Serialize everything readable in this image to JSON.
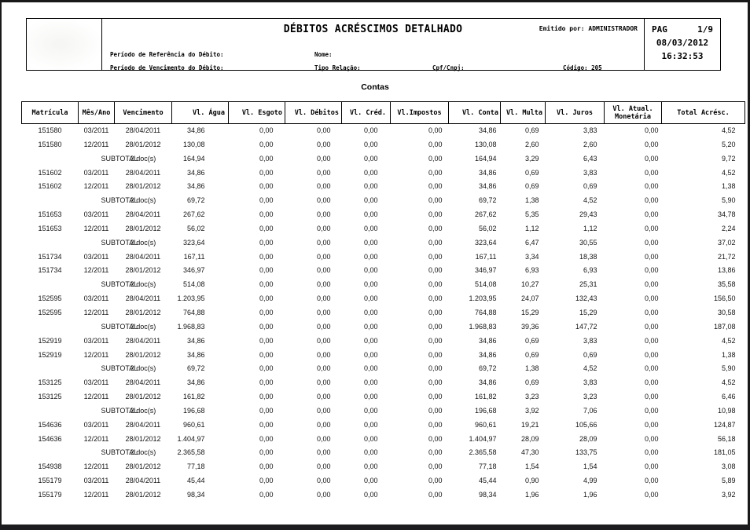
{
  "header": {
    "title": "DÉBITOS ACRÉSCIMOS DETALHADO",
    "emitted_by": "Emitido por: ADMINISTRADOR",
    "pag_label": "PAG",
    "page_number": "1/9",
    "date": "08/03/2012",
    "time": "16:32:53",
    "fields": {
      "periodo_referencia": "Período de Referência do Débito:",
      "periodo_vencimento": "Período de Vencimento do Débito:",
      "nome": "Nome:",
      "tipo_relacao": "Tipo Relação:",
      "cpf_cnpj": "Cpf/Cnpj:",
      "codigo": "Código: 205"
    }
  },
  "section_title": "Contas",
  "table": {
    "columns": [
      "Matrícula",
      "Mês/Ano",
      "Vencimento",
      "Vl. Água",
      "Vl. Esgoto",
      "Vl. Débitos",
      "Vl. Créd.",
      "Vl.Impostos",
      "Vl. Conta",
      "Vl. Multa",
      "Vl. Juros",
      "Vl. Atual.\nMonetária",
      "Total Acrésc."
    ],
    "rows": [
      [
        "151580",
        "03/2011",
        "28/04/2011",
        "34,86",
        "0,00",
        "0,00",
        "0,00",
        "0,00",
        "34,86",
        "0,69",
        "3,83",
        "0,00",
        "4,52"
      ],
      [
        "151580",
        "12/2011",
        "28/01/2012",
        "130,08",
        "0,00",
        "0,00",
        "0,00",
        "0,00",
        "130,08",
        "2,60",
        "2,60",
        "0,00",
        "5,20"
      ],
      [
        "",
        "SUBTOTAL",
        "2 doc(s)",
        "164,94",
        "0,00",
        "0,00",
        "0,00",
        "0,00",
        "164,94",
        "3,29",
        "6,43",
        "0,00",
        "9,72"
      ],
      [
        "151602",
        "03/2011",
        "28/04/2011",
        "34,86",
        "0,00",
        "0,00",
        "0,00",
        "0,00",
        "34,86",
        "0,69",
        "3,83",
        "0,00",
        "4,52"
      ],
      [
        "151602",
        "12/2011",
        "28/01/2012",
        "34,86",
        "0,00",
        "0,00",
        "0,00",
        "0,00",
        "34,86",
        "0,69",
        "0,69",
        "0,00",
        "1,38"
      ],
      [
        "",
        "SUBTOTAL",
        "2 doc(s)",
        "69,72",
        "0,00",
        "0,00",
        "0,00",
        "0,00",
        "69,72",
        "1,38",
        "4,52",
        "0,00",
        "5,90"
      ],
      [
        "151653",
        "03/2011",
        "28/04/2011",
        "267,62",
        "0,00",
        "0,00",
        "0,00",
        "0,00",
        "267,62",
        "5,35",
        "29,43",
        "0,00",
        "34,78"
      ],
      [
        "151653",
        "12/2011",
        "28/01/2012",
        "56,02",
        "0,00",
        "0,00",
        "0,00",
        "0,00",
        "56,02",
        "1,12",
        "1,12",
        "0,00",
        "2,24"
      ],
      [
        "",
        "SUBTOTAL",
        "2 doc(s)",
        "323,64",
        "0,00",
        "0,00",
        "0,00",
        "0,00",
        "323,64",
        "6,47",
        "30,55",
        "0,00",
        "37,02"
      ],
      [
        "151734",
        "03/2011",
        "28/04/2011",
        "167,11",
        "0,00",
        "0,00",
        "0,00",
        "0,00",
        "167,11",
        "3,34",
        "18,38",
        "0,00",
        "21,72"
      ],
      [
        "151734",
        "12/2011",
        "28/01/2012",
        "346,97",
        "0,00",
        "0,00",
        "0,00",
        "0,00",
        "346,97",
        "6,93",
        "6,93",
        "0,00",
        "13,86"
      ],
      [
        "",
        "SUBTOTAL",
        "2 doc(s)",
        "514,08",
        "0,00",
        "0,00",
        "0,00",
        "0,00",
        "514,08",
        "10,27",
        "25,31",
        "0,00",
        "35,58"
      ],
      [
        "152595",
        "03/2011",
        "28/04/2011",
        "1.203,95",
        "0,00",
        "0,00",
        "0,00",
        "0,00",
        "1.203,95",
        "24,07",
        "132,43",
        "0,00",
        "156,50"
      ],
      [
        "152595",
        "12/2011",
        "28/01/2012",
        "764,88",
        "0,00",
        "0,00",
        "0,00",
        "0,00",
        "764,88",
        "15,29",
        "15,29",
        "0,00",
        "30,58"
      ],
      [
        "",
        "SUBTOTAL",
        "2 doc(s)",
        "1.968,83",
        "0,00",
        "0,00",
        "0,00",
        "0,00",
        "1.968,83",
        "39,36",
        "147,72",
        "0,00",
        "187,08"
      ],
      [
        "152919",
        "03/2011",
        "28/04/2011",
        "34,86",
        "0,00",
        "0,00",
        "0,00",
        "0,00",
        "34,86",
        "0,69",
        "3,83",
        "0,00",
        "4,52"
      ],
      [
        "152919",
        "12/2011",
        "28/01/2012",
        "34,86",
        "0,00",
        "0,00",
        "0,00",
        "0,00",
        "34,86",
        "0,69",
        "0,69",
        "0,00",
        "1,38"
      ],
      [
        "",
        "SUBTOTAL",
        "2 doc(s)",
        "69,72",
        "0,00",
        "0,00",
        "0,00",
        "0,00",
        "69,72",
        "1,38",
        "4,52",
        "0,00",
        "5,90"
      ],
      [
        "153125",
        "03/2011",
        "28/04/2011",
        "34,86",
        "0,00",
        "0,00",
        "0,00",
        "0,00",
        "34,86",
        "0,69",
        "3,83",
        "0,00",
        "4,52"
      ],
      [
        "153125",
        "12/2011",
        "28/01/2012",
        "161,82",
        "0,00",
        "0,00",
        "0,00",
        "0,00",
        "161,82",
        "3,23",
        "3,23",
        "0,00",
        "6,46"
      ],
      [
        "",
        "SUBTOTAL",
        "2 doc(s)",
        "196,68",
        "0,00",
        "0,00",
        "0,00",
        "0,00",
        "196,68",
        "3,92",
        "7,06",
        "0,00",
        "10,98"
      ],
      [
        "154636",
        "03/2011",
        "28/04/2011",
        "960,61",
        "0,00",
        "0,00",
        "0,00",
        "0,00",
        "960,61",
        "19,21",
        "105,66",
        "0,00",
        "124,87"
      ],
      [
        "154636",
        "12/2011",
        "28/01/2012",
        "1.404,97",
        "0,00",
        "0,00",
        "0,00",
        "0,00",
        "1.404,97",
        "28,09",
        "28,09",
        "0,00",
        "56,18"
      ],
      [
        "",
        "SUBTOTAL",
        "2 doc(s)",
        "2.365,58",
        "0,00",
        "0,00",
        "0,00",
        "0,00",
        "2.365,58",
        "47,30",
        "133,75",
        "0,00",
        "181,05"
      ],
      [
        "154938",
        "12/2011",
        "28/01/2012",
        "77,18",
        "0,00",
        "0,00",
        "0,00",
        "0,00",
        "77,18",
        "1,54",
        "1,54",
        "0,00",
        "3,08"
      ],
      [
        "155179",
        "03/2011",
        "28/04/2011",
        "45,44",
        "0,00",
        "0,00",
        "0,00",
        "0,00",
        "45,44",
        "0,90",
        "4,99",
        "0,00",
        "5,89"
      ],
      [
        "155179",
        "12/2011",
        "28/01/2012",
        "98,34",
        "0,00",
        "0,00",
        "0,00",
        "0,00",
        "98,34",
        "1,96",
        "1,96",
        "0,00",
        "3,92"
      ]
    ]
  }
}
